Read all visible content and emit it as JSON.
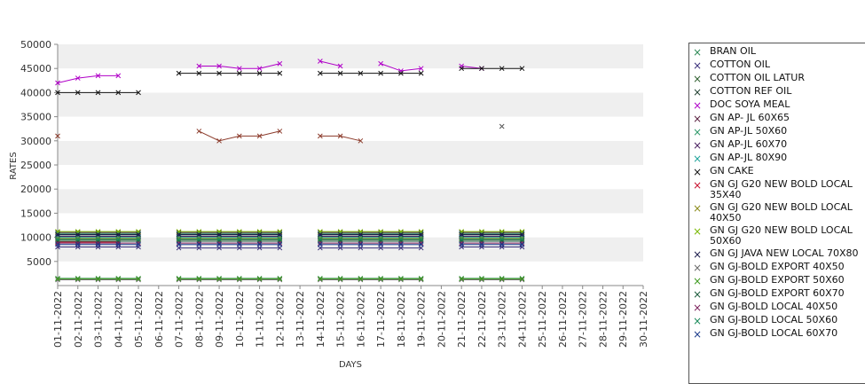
{
  "chart_data": {
    "type": "line",
    "ylabel": "RATES",
    "xlabel": "DAYS",
    "ylim": [
      0,
      50000
    ],
    "yticks": [
      5000,
      10000,
      15000,
      20000,
      25000,
      30000,
      35000,
      40000,
      45000,
      50000
    ],
    "grid": "alternating horizontal bands",
    "legend_position": "right",
    "categories": [
      "01-11-2022",
      "02-11-2022",
      "03-11-2022",
      "04-11-2022",
      "05-11-2022",
      "06-11-2022",
      "07-11-2022",
      "08-11-2022",
      "09-11-2022",
      "10-11-2022",
      "11-11-2022",
      "12-11-2022",
      "13-11-2022",
      "14-11-2022",
      "15-11-2022",
      "16-11-2022",
      "17-11-2022",
      "18-11-2022",
      "19-11-2022",
      "20-11-2022",
      "21-11-2022",
      "22-11-2022",
      "23-11-2022",
      "24-11-2022",
      "25-11-2022",
      "26-11-2022",
      "27-11-2022",
      "28-11-2022",
      "29-11-2022",
      "30-11-2022"
    ],
    "series": [
      {
        "name": "BRAN OIL",
        "color": "#2e8b57",
        "values": [
          1500,
          1500,
          1500,
          1500,
          1500,
          null,
          1500,
          1500,
          1500,
          1500,
          1500,
          1500,
          null,
          1500,
          1500,
          1500,
          1500,
          1500,
          1500,
          null,
          1500,
          1500,
          1500,
          1500,
          null,
          null,
          null,
          null,
          null,
          null
        ]
      },
      {
        "name": "COTTON OIL",
        "color": "#3a2f7a",
        "values": [
          8000,
          8000,
          8000,
          8000,
          8000,
          null,
          7800,
          7800,
          7800,
          7800,
          7800,
          7800,
          null,
          7800,
          7800,
          7800,
          7800,
          7800,
          7800,
          null,
          8000,
          8000,
          8000,
          8000,
          null,
          null,
          null,
          null,
          null,
          null
        ]
      },
      {
        "name": "COTTON OIL LATUR",
        "color": "#2f5f2f",
        "values": [
          9500,
          9500,
          9500,
          9500,
          9500,
          null,
          9500,
          9500,
          9500,
          9500,
          9500,
          9500,
          null,
          9500,
          9500,
          9500,
          9500,
          9500,
          9500,
          null,
          9500,
          9500,
          9500,
          9500,
          null,
          null,
          null,
          null,
          null,
          null
        ]
      },
      {
        "name": "COTTON REF OIL",
        "color": "#1f3f2f",
        "values": [
          10500,
          10500,
          10500,
          10500,
          10500,
          null,
          10500,
          10500,
          10500,
          10500,
          10500,
          10500,
          null,
          10500,
          10500,
          10500,
          10500,
          10500,
          10500,
          null,
          10500,
          10500,
          10500,
          10500,
          null,
          null,
          null,
          null,
          null,
          null
        ]
      },
      {
        "name": "DOC SOYA MEAL",
        "color": "#b000c8",
        "values": [
          42000,
          43000,
          43500,
          43500,
          null,
          null,
          null,
          45500,
          45500,
          45000,
          45000,
          46000,
          null,
          46500,
          45500,
          null,
          46000,
          44500,
          45000,
          null,
          45500,
          45000,
          null,
          null,
          null,
          null,
          null,
          null,
          null,
          null
        ]
      },
      {
        "name": "GN AP- JL 60X65",
        "color": "#5a2040",
        "values": [
          11000,
          11000,
          11000,
          11000,
          11000,
          null,
          11000,
          11000,
          11000,
          11000,
          11000,
          11000,
          null,
          11000,
          11000,
          11000,
          11000,
          11000,
          11000,
          null,
          11000,
          11000,
          11000,
          11000,
          null,
          null,
          null,
          null,
          null,
          null
        ]
      },
      {
        "name": "GN AP-JL 50X60",
        "color": "#2e9a6a",
        "values": [
          10800,
          10800,
          10800,
          10800,
          10800,
          null,
          10800,
          10800,
          10800,
          10800,
          10800,
          10800,
          null,
          10800,
          10800,
          10800,
          10800,
          10800,
          10800,
          null,
          10800,
          10800,
          10800,
          10800,
          null,
          null,
          null,
          null,
          null,
          null
        ]
      },
      {
        "name": "GN AP-JL 60X70",
        "color": "#4a2060",
        "values": [
          10200,
          10200,
          10200,
          10200,
          10200,
          null,
          10200,
          10200,
          10200,
          10200,
          10200,
          10200,
          null,
          10200,
          10200,
          10200,
          10200,
          10200,
          10200,
          null,
          10200,
          10200,
          10200,
          10200,
          null,
          null,
          null,
          null,
          null,
          null
        ]
      },
      {
        "name": "GN AP-JL 80X90",
        "color": "#1fa39a",
        "values": [
          10000,
          10000,
          10000,
          10000,
          10000,
          null,
          10000,
          10000,
          10000,
          10000,
          10000,
          10000,
          null,
          10000,
          10000,
          10000,
          10000,
          10000,
          10000,
          null,
          10000,
          10000,
          10000,
          10000,
          null,
          null,
          null,
          null,
          null,
          null
        ]
      },
      {
        "name": "GN CAKE",
        "color": "#111111",
        "values": [
          40000,
          40000,
          40000,
          40000,
          40000,
          null,
          44000,
          44000,
          44000,
          44000,
          44000,
          44000,
          null,
          44000,
          44000,
          44000,
          44000,
          44000,
          44000,
          null,
          45000,
          45000,
          45000,
          45000,
          null,
          null,
          null,
          null,
          null,
          null
        ]
      },
      {
        "name": "GN GJ G20 NEW BOLD LOCAL 35X40",
        "color": "#c8102e",
        "values": [
          9000,
          9000,
          9000,
          9000,
          null,
          null,
          null,
          null,
          null,
          null,
          null,
          null,
          null,
          null,
          null,
          null,
          null,
          null,
          null,
          null,
          null,
          null,
          null,
          null,
          null,
          null,
          null,
          null,
          null,
          null
        ]
      },
      {
        "name": "GN GJ G20 NEW BOLD LOCAL 40X50",
        "color": "#8a8a1a",
        "values": [
          9800,
          9800,
          9800,
          9800,
          9800,
          null,
          9800,
          9800,
          9800,
          9800,
          9800,
          9800,
          null,
          9800,
          9800,
          9800,
          9800,
          9800,
          9800,
          null,
          9800,
          9800,
          9800,
          9800,
          null,
          null,
          null,
          null,
          null,
          null
        ]
      },
      {
        "name": "GN GJ G20 NEW BOLD LOCAL 50X60",
        "color": "#7ab800",
        "values": [
          11200,
          11200,
          11200,
          11200,
          11200,
          null,
          11200,
          11200,
          11200,
          11200,
          11200,
          11200,
          null,
          11200,
          11200,
          11200,
          11200,
          11200,
          11200,
          null,
          11200,
          11200,
          11200,
          11200,
          null,
          null,
          null,
          null,
          null,
          null
        ]
      },
      {
        "name": "GN GJ JAVA NEW LOCAL 70X80",
        "color": "#1a1a4a",
        "values": [
          10600,
          10600,
          10600,
          10600,
          10600,
          null,
          10600,
          10600,
          10600,
          10600,
          10600,
          10600,
          null,
          10600,
          10600,
          10600,
          10600,
          10600,
          10600,
          null,
          10600,
          10600,
          10600,
          10600,
          null,
          null,
          null,
          null,
          null,
          null
        ]
      },
      {
        "name": "GN GJ-BOLD EXPORT 40X50",
        "color": "#6a6a6a",
        "values": [
          1200,
          1200,
          1200,
          1200,
          1200,
          null,
          1200,
          1200,
          1200,
          1200,
          1200,
          1200,
          null,
          1200,
          1200,
          1200,
          1200,
          1200,
          1200,
          null,
          1200,
          1200,
          1200,
          1200,
          null,
          null,
          null,
          null,
          null,
          null
        ]
      },
      {
        "name": "GN GJ-BOLD EXPORT 50X60",
        "color": "#3f9a1f",
        "values": [
          1400,
          1400,
          1400,
          1400,
          1400,
          null,
          1400,
          1400,
          1400,
          1400,
          1400,
          1400,
          null,
          1400,
          1400,
          1400,
          1400,
          1400,
          1400,
          null,
          1400,
          1400,
          1400,
          1400,
          null,
          null,
          null,
          null,
          null,
          null
        ]
      },
      {
        "name": "GN GJ-BOLD EXPORT 60X70",
        "color": "#1a5a3a",
        "values": [
          9200,
          9200,
          9200,
          9200,
          9200,
          null,
          9200,
          9200,
          9200,
          9200,
          9200,
          9200,
          null,
          9200,
          9200,
          9200,
          9200,
          9200,
          9200,
          null,
          9200,
          9200,
          9200,
          9200,
          null,
          null,
          null,
          null,
          null,
          null
        ]
      },
      {
        "name": "GN GJ-BOLD LOCAL 40X50",
        "color": "#7a1f5a",
        "values": [
          8800,
          8800,
          8800,
          8800,
          8800,
          null,
          8800,
          8800,
          8800,
          8800,
          8800,
          8800,
          null,
          8800,
          8800,
          8800,
          8800,
          8800,
          8800,
          null,
          8800,
          8800,
          8800,
          8800,
          null,
          null,
          null,
          null,
          null,
          null
        ]
      },
      {
        "name": "GN GJ-BOLD LOCAL 50X60",
        "color": "#1a8a5a",
        "values": [
          9600,
          9600,
          9600,
          9600,
          9600,
          null,
          9600,
          9600,
          9600,
          9600,
          9600,
          9600,
          null,
          9600,
          9600,
          9600,
          9600,
          9600,
          9600,
          null,
          9600,
          9600,
          9600,
          9600,
          null,
          null,
          null,
          null,
          null,
          null
        ]
      },
      {
        "name": "GN GJ-BOLD LOCAL 60X70",
        "color": "#1a3a8a",
        "values": [
          8500,
          8500,
          8500,
          8500,
          8500,
          null,
          8500,
          8500,
          8500,
          8500,
          8500,
          8500,
          null,
          8500,
          8500,
          8500,
          8500,
          8500,
          8500,
          null,
          8500,
          8500,
          8500,
          8500,
          null,
          null,
          null,
          null,
          null,
          null
        ]
      },
      {
        "name": "",
        "color": "#8b3a2a",
        "values": [
          31000,
          null,
          null,
          null,
          null,
          null,
          null,
          32000,
          30000,
          31000,
          31000,
          32000,
          null,
          31000,
          31000,
          30000,
          null,
          null,
          null,
          null,
          null,
          null,
          null,
          null,
          null,
          null,
          null,
          null,
          null,
          null
        ]
      },
      {
        "name": "",
        "color": "#555555",
        "values": [
          null,
          null,
          null,
          null,
          null,
          null,
          null,
          null,
          null,
          null,
          null,
          null,
          null,
          null,
          null,
          null,
          null,
          null,
          null,
          null,
          null,
          null,
          33000,
          null,
          null,
          null,
          null,
          null,
          null,
          null
        ]
      }
    ]
  }
}
